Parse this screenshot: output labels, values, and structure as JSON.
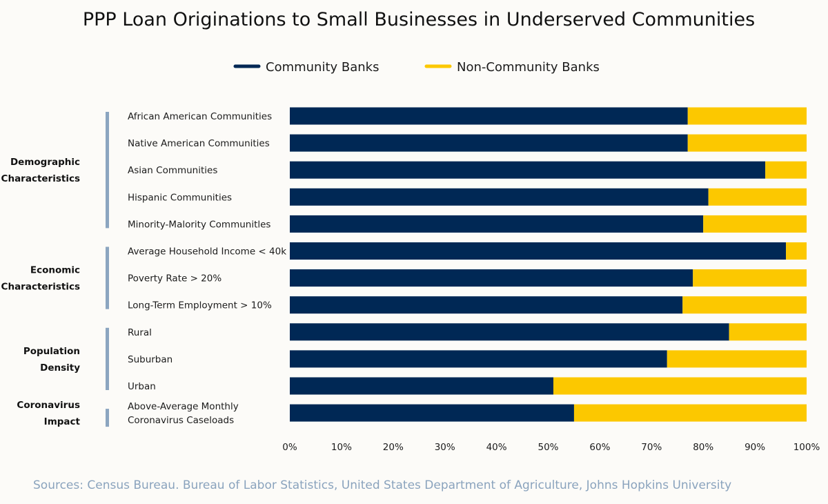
{
  "chart_data": {
    "type": "bar",
    "orientation": "horizontal",
    "stacked": true,
    "title": "PPP Loan Originations to Small Businesses in Underserved Communities",
    "legend": {
      "placement": "top-center"
    },
    "series": [
      {
        "name": "Community Banks",
        "color": "#002855",
        "values": [
          77,
          77,
          92,
          81,
          80,
          96,
          78,
          76,
          85,
          73,
          51,
          55
        ]
      },
      {
        "name": "Non-Community Banks",
        "color": "#fcc800",
        "values": [
          23,
          23,
          8,
          19,
          20,
          4,
          22,
          24,
          15,
          27,
          49,
          45
        ]
      }
    ],
    "categories": [
      [
        "African American Communities"
      ],
      [
        "Native American Communities"
      ],
      [
        "Asian Communities"
      ],
      [
        "Hispanic Communities"
      ],
      [
        "Minority-Malority Communitles"
      ],
      [
        "Average Household Income < 40k"
      ],
      [
        "Poverty Rate > 20%"
      ],
      [
        "Long-Term Employment > 10%"
      ],
      [
        "Rural"
      ],
      [
        "Suburban"
      ],
      [
        "Urban"
      ],
      [
        "Above-Average Monthly",
        "Coronavirus Caseloads"
      ]
    ],
    "groups": [
      {
        "label": [
          "Demographic",
          "Characteristics"
        ],
        "start": 0,
        "end": 4
      },
      {
        "label": [
          "Economic",
          "Characteristics"
        ],
        "start": 5,
        "end": 7
      },
      {
        "label": [
          "Population",
          "Density"
        ],
        "start": 8,
        "end": 10
      },
      {
        "label": [
          "Coronavirus",
          "Impact"
        ],
        "start": 11,
        "end": 11
      }
    ],
    "xlim": [
      0,
      100
    ],
    "xticks": [
      "0%",
      "10%",
      "20%",
      "30%",
      "40%",
      "50%",
      "60%",
      "70%",
      "80%",
      "90%",
      "100%"
    ],
    "grid": false
  },
  "source": "Sources: Census Bureau. Bureau of Labor Statistics, United States Department of Agriculture, Johns Hopkins University",
  "colors": {
    "group_bar": "#8ca5c0",
    "source_text": "#8aa3bd"
  }
}
